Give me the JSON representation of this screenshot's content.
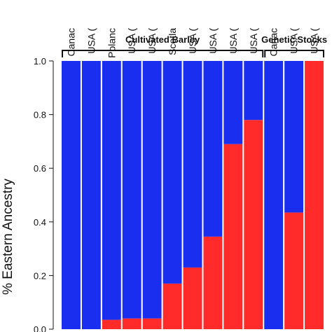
{
  "chart_data": {
    "type": "bar",
    "stacked": true,
    "ylabel": "% Eastern Ancestry",
    "ylim": [
      0,
      1.0
    ],
    "yticks": [
      "0.0",
      "0.2",
      "0.4",
      "0.6",
      "0.8",
      "1.0"
    ],
    "categories": [
      "Canac",
      "USA (",
      "Polanc",
      "USA (",
      "USA (",
      "Scotla",
      "USA (",
      "USA (",
      "USA (",
      "USA (",
      "Canac",
      "USA (",
      "USA ("
    ],
    "series": [
      {
        "color": "#ff2a2a",
        "values": [
          0.0,
          0.0,
          0.035,
          0.04,
          0.04,
          0.17,
          0.23,
          0.345,
          0.69,
          0.78,
          0.0,
          0.435,
          1.0
        ]
      },
      {
        "color": "#1a2ef0",
        "values": [
          1.0,
          1.0,
          0.965,
          0.96,
          0.96,
          0.83,
          0.77,
          0.655,
          0.31,
          0.22,
          1.0,
          0.565,
          0.0
        ]
      }
    ],
    "groups": [
      {
        "label": "Cultivated Barley",
        "start": 0,
        "end": 9
      },
      {
        "label": "Genetic Stocks",
        "start": 10,
        "end": 12
      }
    ],
    "grid": false,
    "legend": "none"
  }
}
